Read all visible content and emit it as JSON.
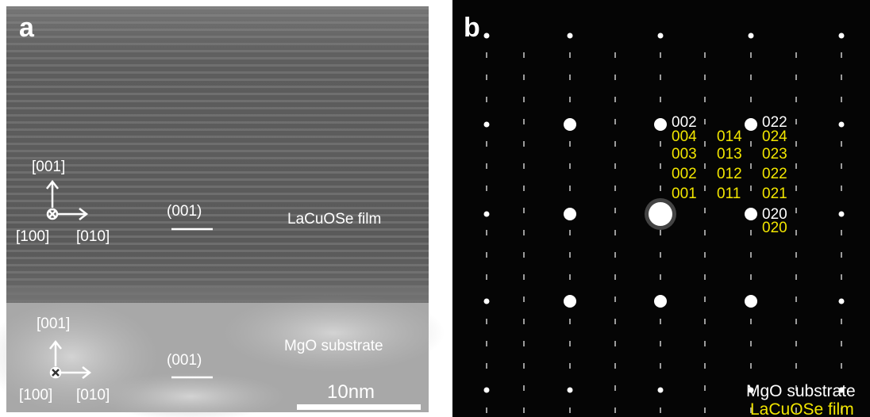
{
  "panel_a": {
    "label": "a",
    "film": {
      "axis_up": "[001]",
      "axis_in": "[100]",
      "axis_right": "[010]",
      "plane": "(001)",
      "name": "LaCuOSe film"
    },
    "substrate": {
      "axis_up": "[001]",
      "axis_in": "[100]",
      "axis_right": "[010]",
      "plane": "(001)",
      "name": "MgO substrate"
    },
    "scale_bar": "10nm"
  },
  "panel_b": {
    "label": "b",
    "mgo_indices": [
      "002",
      "022",
      "020"
    ],
    "film_indices": [
      [
        "004",
        "014",
        "024"
      ],
      [
        "003",
        "013",
        "023"
      ],
      [
        "002",
        "012",
        "022"
      ],
      [
        "001",
        "011",
        "021"
      ],
      [
        "020"
      ]
    ],
    "legend": [
      "MgO substrate",
      "LaCuOSe film"
    ]
  }
}
